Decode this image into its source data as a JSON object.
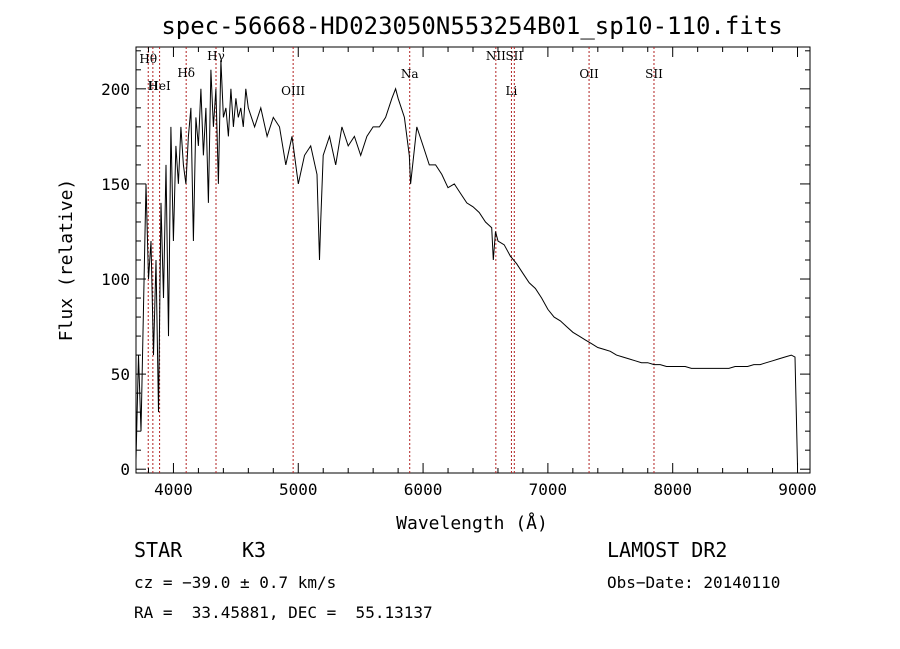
{
  "chart_data": {
    "type": "line",
    "title": "spec-56668-HD023050N553254B01_sp10-110.fits",
    "xlabel": "Wavelength (Å)",
    "ylabel": "Flux (relative)",
    "xlim": [
      3700,
      9100
    ],
    "ylim": [
      -2,
      222
    ],
    "xticks": [
      4000,
      5000,
      6000,
      7000,
      8000,
      9000
    ],
    "yticks": [
      0,
      50,
      100,
      150,
      200
    ],
    "series": [
      {
        "x": [
          3700,
          3720,
          3740,
          3760,
          3780,
          3800,
          3820,
          3840,
          3860,
          3880,
          3900,
          3920,
          3940,
          3960,
          3980,
          4000,
          4020,
          4040,
          4060,
          4080,
          4100,
          4120,
          4140,
          4160,
          4180,
          4200,
          4220,
          4240,
          4260,
          4280,
          4300,
          4320,
          4340,
          4360,
          4380,
          4400,
          4420,
          4440,
          4460,
          4480,
          4500,
          4520,
          4540,
          4560,
          4580,
          4600,
          4650,
          4700,
          4750,
          4800,
          4850,
          4900,
          4950,
          5000,
          5050,
          5100,
          5150,
          5170,
          5180,
          5200,
          5250,
          5300,
          5350,
          5400,
          5450,
          5500,
          5550,
          5600,
          5650,
          5700,
          5750,
          5780,
          5800,
          5850,
          5890,
          5900,
          5950,
          6000,
          6050,
          6100,
          6150,
          6200,
          6250,
          6300,
          6350,
          6400,
          6450,
          6500,
          6550,
          6563,
          6580,
          6600,
          6650,
          6700,
          6750,
          6800,
          6850,
          6900,
          6950,
          7000,
          7050,
          7100,
          7150,
          7200,
          7250,
          7300,
          7350,
          7400,
          7450,
          7500,
          7550,
          7600,
          7650,
          7700,
          7750,
          7800,
          7850,
          7900,
          7950,
          8000,
          8050,
          8100,
          8150,
          8200,
          8250,
          8300,
          8350,
          8400,
          8450,
          8500,
          8550,
          8600,
          8650,
          8700,
          8750,
          8800,
          8850,
          8900,
          8950,
          8980,
          9000
        ],
        "y": [
          5,
          60,
          20,
          85,
          150,
          100,
          120,
          60,
          110,
          30,
          140,
          90,
          160,
          70,
          180,
          120,
          170,
          150,
          180,
          160,
          150,
          175,
          190,
          120,
          185,
          170,
          200,
          165,
          190,
          140,
          210,
          180,
          200,
          150,
          215,
          185,
          190,
          175,
          200,
          180,
          195,
          185,
          190,
          180,
          200,
          190,
          180,
          190,
          175,
          185,
          180,
          160,
          175,
          150,
          165,
          170,
          155,
          110,
          130,
          165,
          175,
          160,
          180,
          170,
          175,
          165,
          175,
          180,
          180,
          185,
          195,
          200,
          195,
          185,
          165,
          150,
          180,
          170,
          160,
          160,
          155,
          148,
          150,
          145,
          140,
          138,
          135,
          130,
          127,
          110,
          125,
          120,
          118,
          112,
          108,
          103,
          98,
          95,
          90,
          84,
          80,
          78,
          75,
          72,
          70,
          68,
          66,
          64,
          63,
          62,
          60,
          59,
          58,
          57,
          56,
          56,
          55,
          55,
          54,
          54,
          54,
          54,
          53,
          53,
          53,
          53,
          53,
          53,
          53,
          54,
          54,
          54,
          55,
          55,
          56,
          57,
          58,
          59,
          60,
          59,
          2
        ]
      }
    ],
    "lines": [
      {
        "label": "Hθ",
        "x": 3798
      },
      {
        "label": "H",
        "x": 3835
      },
      {
        "label": "HeI",
        "x": 3889
      },
      {
        "label": "Hδ",
        "x": 4102
      },
      {
        "label": "Hγ",
        "x": 4341
      },
      {
        "label": "OIII",
        "x": 4959
      },
      {
        "label": "Na",
        "x": 5893
      },
      {
        "label": "NII",
        "x": 6583
      },
      {
        "label": "Li",
        "x": 6708
      },
      {
        "label": "SII",
        "x": 6731
      },
      {
        "label": "OII",
        "x": 7330
      },
      {
        "label": "SII",
        "x": 7850
      }
    ],
    "grid": false
  },
  "info": {
    "class": "STAR",
    "subclass": "K3",
    "survey": "LAMOST DR2",
    "cz": "cz = −39.0 ± 0.7 km/s",
    "obs_date": "Obs−Date: 20140110",
    "coords": "RA =  33.45881, DEC =  55.13137"
  },
  "colors": {
    "spectrum": "#000000",
    "line_markers": "#b22222"
  }
}
